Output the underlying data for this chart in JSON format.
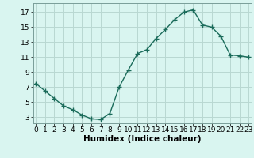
{
  "x": [
    0,
    1,
    2,
    3,
    4,
    5,
    6,
    7,
    8,
    9,
    10,
    11,
    12,
    13,
    14,
    15,
    16,
    17,
    18,
    19,
    20,
    21,
    22,
    23
  ],
  "y": [
    7.5,
    6.5,
    5.5,
    4.5,
    4.0,
    3.3,
    2.8,
    2.7,
    3.5,
    7.0,
    9.3,
    11.5,
    12.0,
    13.5,
    14.7,
    16.0,
    17.0,
    17.3,
    15.3,
    15.0,
    13.8,
    11.3,
    11.2,
    11.0
  ],
  "line_color": "#1a6b5a",
  "marker": "+",
  "markersize": 4,
  "linewidth": 1.0,
  "background_color": "#d9f5f0",
  "grid_color": "#b8d8d2",
  "xlabel": "Humidex (Indice chaleur)",
  "tick_fontsize": 6.5,
  "xlabel_fontsize": 7.5,
  "yticks": [
    3,
    5,
    7,
    9,
    11,
    13,
    15,
    17
  ],
  "xticks": [
    0,
    1,
    2,
    3,
    4,
    5,
    6,
    7,
    8,
    9,
    10,
    11,
    12,
    13,
    14,
    15,
    16,
    17,
    18,
    19,
    20,
    21,
    22,
    23
  ],
  "xlim": [
    -0.3,
    23.3
  ],
  "ylim": [
    2.2,
    18.2
  ]
}
